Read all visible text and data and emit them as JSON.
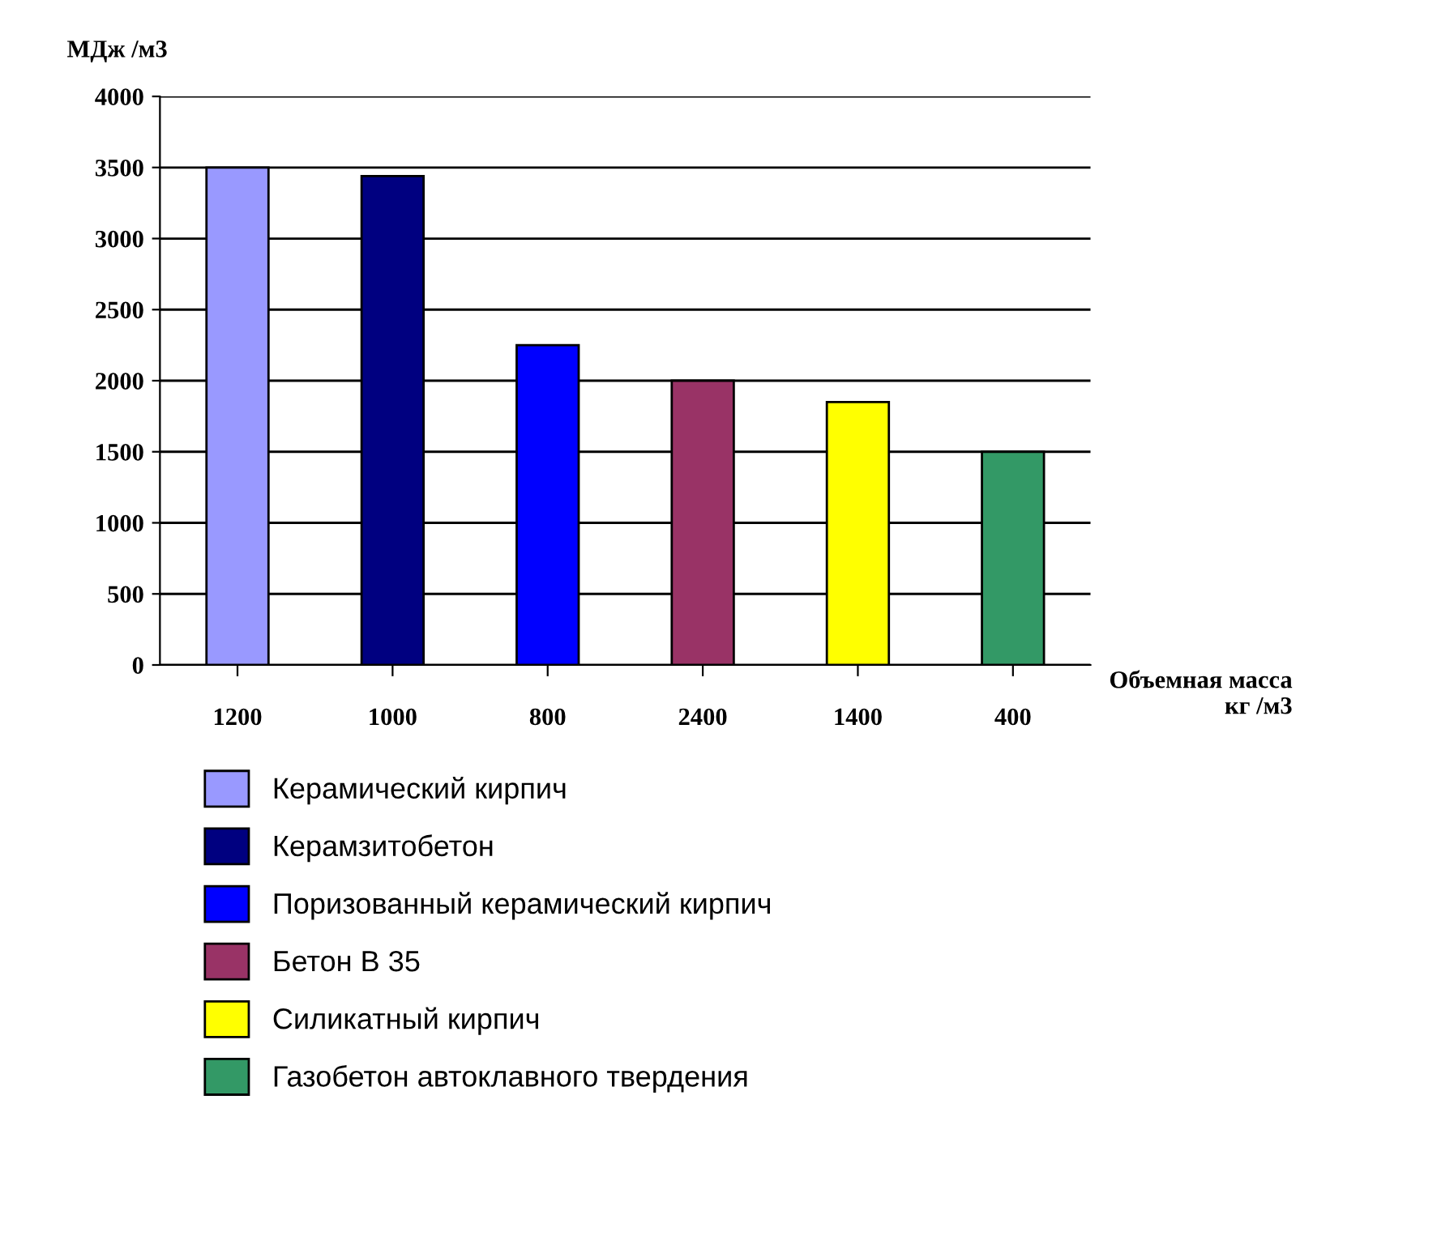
{
  "chart_data": {
    "type": "bar",
    "ylabel": "МДж /м3",
    "xlabel": "Объемная масса\nкг /м3",
    "categories": [
      "1200",
      "1000",
      "800",
      "2400",
      "1400",
      "400"
    ],
    "series": [
      {
        "name": "Керамический кирпич",
        "color": "#9999ff",
        "values": [
          3500,
          null,
          null,
          null,
          null,
          null
        ]
      },
      {
        "name": "Керамзитобетон",
        "color": "#000080",
        "values": [
          null,
          3440,
          null,
          null,
          null,
          null
        ]
      },
      {
        "name": "Поризованный керамический кирпич",
        "color": "#0000ff",
        "values": [
          null,
          null,
          2250,
          null,
          null,
          null
        ]
      },
      {
        "name": "Бетон В 35",
        "color": "#993366",
        "values": [
          null,
          null,
          null,
          2000,
          null,
          null
        ]
      },
      {
        "name": "Силикатный кирпич",
        "color": "#ffff00",
        "values": [
          null,
          null,
          null,
          null,
          1850,
          null
        ]
      },
      {
        "name": "Газобетон автоклавного твердения",
        "color": "#339966",
        "values": [
          null,
          null,
          null,
          null,
          null,
          1500
        ]
      }
    ],
    "ylim": [
      0,
      4000
    ],
    "yticks": [
      0,
      500,
      1000,
      1500,
      2000,
      2500,
      3000,
      3500,
      4000
    ],
    "grid": "y",
    "legend": "bottom"
  }
}
